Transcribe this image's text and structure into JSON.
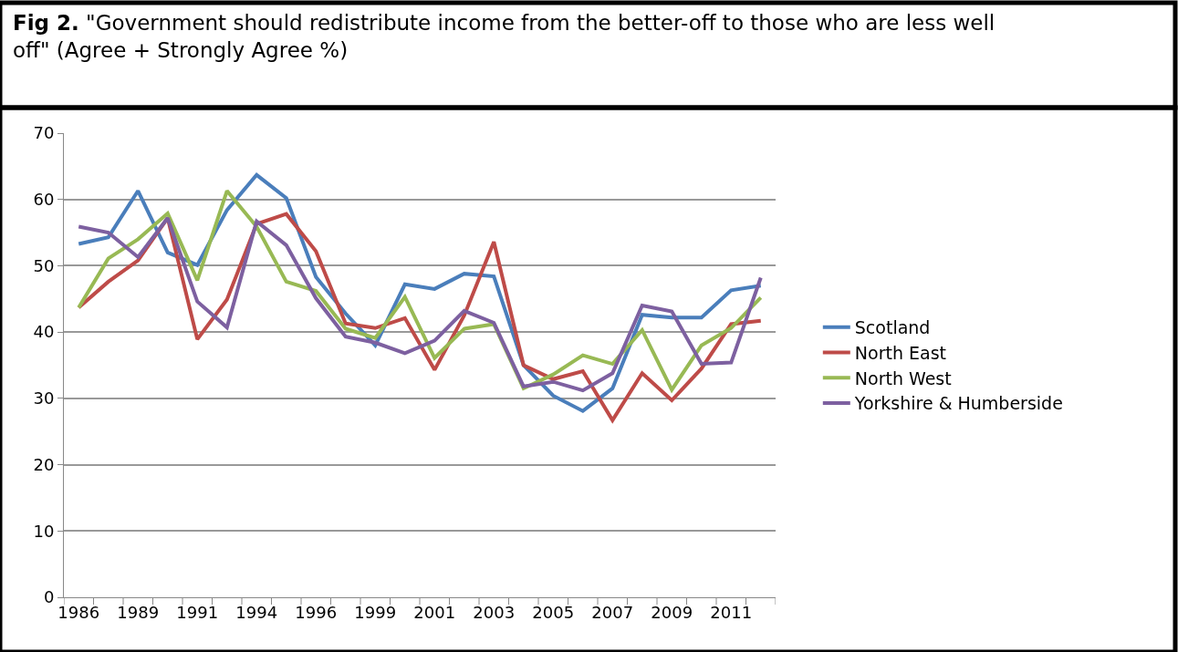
{
  "chart_data": {
    "type": "line",
    "title": "Fig 2.",
    "subtitle": "\"Government should redistribute income from the better-off to those who are less well off\" (Agree + Strongly Agree %)",
    "categories": [
      "1986",
      null,
      "1989",
      null,
      "1991",
      null,
      "1994",
      null,
      "1996",
      null,
      "1999",
      null,
      "2001",
      null,
      "2003",
      null,
      "2005",
      null,
      "2007",
      null,
      "2009",
      null,
      "2011",
      null
    ],
    "series": [
      {
        "name": "Scotland",
        "color": "#4a7ebb",
        "values": [
          53.3,
          54.3,
          61.3,
          52.0,
          50.1,
          58.4,
          63.7,
          60.2,
          48.3,
          42.8,
          38.0,
          47.2,
          46.5,
          48.8,
          48.4,
          35.0,
          30.4,
          28.1,
          31.5,
          42.6,
          42.2,
          42.2,
          46.3,
          47.0
        ]
      },
      {
        "name": "North East",
        "color": "#be4b48",
        "values": [
          43.7,
          47.6,
          50.8,
          57.2,
          38.9,
          44.9,
          56.3,
          57.8,
          52.2,
          41.3,
          40.6,
          42.1,
          34.3,
          42.5,
          53.6,
          35.0,
          32.9,
          34.1,
          26.7,
          33.8,
          29.7,
          34.5,
          41.2,
          41.7
        ]
      },
      {
        "name": "North West",
        "color": "#98b954",
        "values": [
          43.7,
          51.1,
          54.0,
          57.9,
          47.8,
          61.3,
          55.9,
          47.6,
          46.2,
          40.5,
          39.1,
          45.3,
          36.1,
          40.5,
          41.2,
          31.5,
          33.6,
          36.5,
          35.2,
          40.3,
          31.3,
          38.0,
          40.6,
          45.2
        ]
      },
      {
        "name": "Yorkshire & Humberside",
        "color": "#7d60a0",
        "values": [
          55.9,
          55.0,
          51.3,
          57.2,
          44.6,
          40.7,
          56.7,
          53.1,
          45.1,
          39.3,
          38.4,
          36.8,
          38.7,
          43.2,
          41.4,
          31.8,
          32.5,
          31.2,
          33.8,
          44.0,
          43.1,
          35.2,
          35.4,
          48.2
        ]
      }
    ],
    "ylim": [
      0,
      70
    ],
    "yticks": [
      0,
      10,
      20,
      30,
      40,
      50,
      60,
      70
    ],
    "grid": "y",
    "legend": "right",
    "marker": "none",
    "line_style": "solid"
  }
}
